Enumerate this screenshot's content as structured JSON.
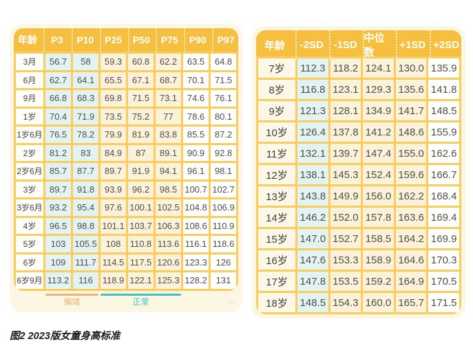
{
  "page": {
    "caption": "图2 2023版女童身高标准",
    "watermark_dash": "—"
  },
  "left_table": {
    "headers": [
      "年龄",
      "P3",
      "P10",
      "P25",
      "P50",
      "P75",
      "P90",
      "P97"
    ],
    "rows": [
      [
        "3月",
        "56.7",
        "58",
        "59.3",
        "60.8",
        "62.2",
        "63.5",
        "64.8"
      ],
      [
        "6月",
        "62.7",
        "64.1",
        "65.5",
        "67.1",
        "68.7",
        "70.1",
        "71.5"
      ],
      [
        "9月",
        "66.8",
        "68.3",
        "69.8",
        "71.5",
        "73.1",
        "74.6",
        "76.1"
      ],
      [
        "1岁",
        "70.4",
        "71.9",
        "73.5",
        "75.2",
        "77",
        "78.6",
        "80.1"
      ],
      [
        "1岁6月",
        "76.5",
        "78.2",
        "79.9",
        "81.9",
        "83.8",
        "85.5",
        "87.2"
      ],
      [
        "2岁",
        "81.2",
        "83",
        "84.9",
        "87",
        "89.1",
        "90.9",
        "92.8"
      ],
      [
        "2岁6月",
        "85.7",
        "87.7",
        "89.7",
        "91.9",
        "94.1",
        "96.1",
        "98.1"
      ],
      [
        "3岁",
        "89.7",
        "91.8",
        "93.9",
        "96.2",
        "98.5",
        "100.7",
        "102.7"
      ],
      [
        "3岁6月",
        "93.2",
        "95.4",
        "97.6",
        "100.1",
        "102.5",
        "104.8",
        "106.9"
      ],
      [
        "4岁",
        "96.5",
        "98.8",
        "101.1",
        "103.7",
        "106.3",
        "108.6",
        "110.9"
      ],
      [
        "5岁",
        "103",
        "105.5",
        "108",
        "110.8",
        "113.6",
        "116.1",
        "118.6"
      ],
      [
        "6岁",
        "109",
        "111.7",
        "114.5",
        "117.5",
        "120.6",
        "123.3",
        "126"
      ],
      [
        "6岁9月",
        "113.2",
        "116",
        "118.9",
        "122.1",
        "125.3",
        "128.2",
        "131"
      ]
    ],
    "legend": [
      {
        "label": "偏矮",
        "color": "#F2B07C"
      },
      {
        "label": "正常",
        "color": "#41C4C0"
      }
    ]
  },
  "right_table": {
    "headers": [
      "年龄",
      "-2SD",
      "-1SD",
      "中位数",
      "+1SD",
      "+2SD"
    ],
    "rows": [
      [
        "7岁",
        "112.3",
        "118.2",
        "124.1",
        "130.0",
        "135.9"
      ],
      [
        "8岁",
        "116.8",
        "123.1",
        "129.3",
        "135.6",
        "141.8"
      ],
      [
        "9岁",
        "121.3",
        "128.1",
        "134.9",
        "141.7",
        "148.5"
      ],
      [
        "10岁",
        "126.4",
        "137.8",
        "141.2",
        "148.6",
        "155.9"
      ],
      [
        "11岁",
        "132.1",
        "139.7",
        "147.4",
        "155.0",
        "162.6"
      ],
      [
        "12岁",
        "138.1",
        "145.3",
        "152.4",
        "159.6",
        "166.7"
      ],
      [
        "13岁",
        "143.8",
        "149.9",
        "156.0",
        "162.2",
        "168.4"
      ],
      [
        "14岁",
        "146.2",
        "152.0",
        "157.8",
        "163.6",
        "169.4"
      ],
      [
        "15岁",
        "147.0",
        "152.7",
        "158.5",
        "164.2",
        "169.9"
      ],
      [
        "16岁",
        "147.6",
        "153.3",
        "158.9",
        "164.6",
        "170.3"
      ],
      [
        "17岁",
        "147.8",
        "153.5",
        "159.2",
        "164.9",
        "170.5"
      ],
      [
        "18岁",
        "148.5",
        "154.3",
        "160.0",
        "165.7",
        "171.5"
      ]
    ]
  },
  "colors": {
    "header_yellow": "#F7BF3F",
    "grid_yellow": "#F9CC5C",
    "card_cream": "#FCF7E3",
    "cell_cream": "#FBF2D9",
    "cell_blue": "#E3F3F1",
    "cell_white": "#FFFFFE",
    "legend_short": "#F2B07C",
    "legend_normal": "#41C4C0"
  }
}
